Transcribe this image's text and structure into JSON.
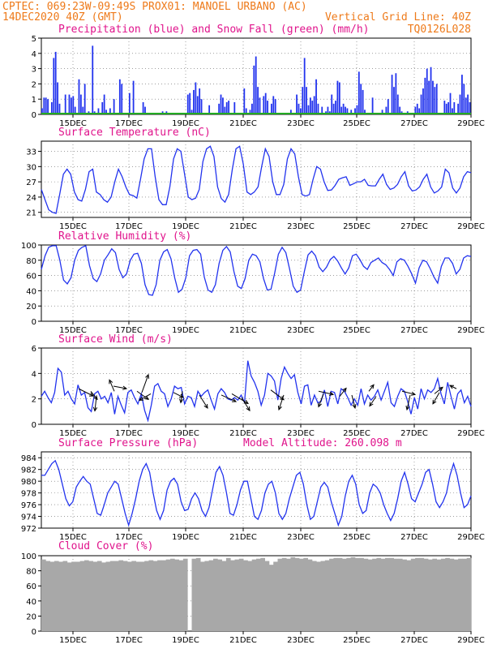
{
  "header": {
    "line1": "CPTEC:   069:23W-09:49S   PROX01: MANOEL URBANO (AC)",
    "line2_left": "14DEC2020 40Z (GMT)",
    "line2_right": "Vertical Grid Line: 40Z",
    "line3_right": "TQ0126L028"
  },
  "colors": {
    "header": "#ee7a1a",
    "title": "#e0148c",
    "precip": "#2233ee",
    "snow": "#22aa22",
    "line": "#2233ee",
    "wind_arrow": "#000000",
    "cloud": "#a8a8a8"
  },
  "x_ticks": [
    "15DEC",
    "17DEC",
    "19DEC",
    "21DEC",
    "23DEC",
    "25DEC",
    "27DEC",
    "29DEC"
  ],
  "chart_data": [
    {
      "id": "precip",
      "type": "bar",
      "title": "Precipitation (blue) and Snow Fall (green) (mm/h)",
      "ylim": [
        0,
        5
      ],
      "yticks": [
        "0",
        "1",
        "2",
        "3",
        "4",
        "5"
      ],
      "series": [
        {
          "name": "Precipitation",
          "values": [
            0.4,
            1.1,
            1.1,
            1.0,
            0,
            0.8,
            3.7,
            4.1,
            2.1,
            0.7,
            0,
            0,
            1.3,
            0,
            1.3,
            1.1,
            1.2,
            0.5,
            0,
            2.3,
            1.3,
            0.5,
            2.0,
            0,
            0.2,
            0,
            4.5,
            0.2,
            0,
            0.4,
            0.1,
            0.8,
            1.3,
            0.3,
            0,
            0.4,
            0,
            1.0,
            0,
            0,
            2.3,
            2.0,
            0,
            0,
            0,
            1.4,
            0,
            2.2,
            0,
            0,
            0,
            0,
            0.8,
            0.5,
            0,
            0,
            0,
            0,
            0,
            0,
            0,
            0,
            0.2,
            0,
            0.2,
            0,
            0,
            0,
            0,
            0,
            0,
            0,
            0,
            0,
            0,
            1.3,
            1.4,
            0.3,
            1.6,
            2.1,
            1.2,
            1.7,
            1.0,
            0,
            0,
            0,
            0.6,
            0,
            0,
            0,
            0,
            0.7,
            1.3,
            1.1,
            0.5,
            0.8,
            0.9,
            0,
            0,
            0.8,
            0,
            0,
            0,
            0,
            1.7,
            0.4,
            0,
            0.3,
            0.7,
            3.2,
            3.8,
            1.8,
            1.1,
            0,
            1.2,
            1.4,
            0.9,
            0,
            0.7,
            1.2,
            1.0,
            0,
            0,
            0,
            0,
            0,
            0,
            0,
            0.3,
            0,
            0,
            1.3,
            0.7,
            0.4,
            1.8,
            3.7,
            1.8,
            0.6,
            1.1,
            0.9,
            1.2,
            2.3,
            0.7,
            0,
            0.5,
            0,
            0.2,
            0.5,
            0.2,
            1.3,
            0.7,
            0.9,
            2.2,
            2.1,
            0.5,
            0.7,
            0.5,
            0.4,
            0,
            0.3,
            0,
            0.4,
            0.6,
            2.8,
            2.0,
            1.6,
            0.3,
            0,
            0,
            0,
            1.1,
            0,
            0,
            0,
            0,
            0.3,
            0,
            0.5,
            1.0,
            0,
            2.6,
            1.8,
            2.7,
            1.3,
            0.5,
            0.2,
            0,
            0,
            0.2,
            0,
            0,
            0,
            0.5,
            0.7,
            0.4,
            1.3,
            1.7,
            2.4,
            3.0,
            2.2,
            3.1,
            2.2,
            1.8,
            2.0,
            0,
            0,
            0,
            0.9,
            0.7,
            0.8,
            1.4,
            0.4,
            0.8,
            0,
            0.7,
            1.3,
            2.6,
            2.0,
            1.1,
            1.3,
            0.8
          ],
          "color": "#2233ee"
        },
        {
          "name": "Snow Fall",
          "values": [
            0
          ],
          "color": "#22aa22"
        }
      ]
    },
    {
      "id": "temp",
      "type": "line",
      "title": "Surface Temperature (nC)",
      "ylim": [
        20,
        35
      ],
      "yticks": [
        "21",
        "24",
        "27",
        "30",
        "33"
      ],
      "series": [
        {
          "name": "Surface Temperature",
          "values": [
            25.5,
            23.5,
            21.5,
            21,
            20.8,
            24.5,
            28.5,
            29.5,
            28.5,
            25,
            23.5,
            23.2,
            25.5,
            29,
            29.5,
            25,
            24.5,
            23.5,
            23,
            24,
            27,
            29.5,
            28,
            26,
            24.5,
            24.3,
            23.8,
            27.5,
            31.5,
            33.5,
            33.5,
            28,
            23.5,
            22.5,
            22.5,
            26,
            31.5,
            33.5,
            33,
            28.5,
            24,
            23.5,
            23.8,
            25.5,
            31,
            33.5,
            34,
            32,
            26,
            23.7,
            23,
            24.5,
            29.5,
            33.5,
            34,
            30.5,
            25,
            24.5,
            25,
            26,
            30,
            33.5,
            32,
            27,
            24.5,
            24.5,
            26.5,
            31.5,
            33.5,
            32.5,
            28,
            24.5,
            24.2,
            24.5,
            27.5,
            30,
            29.5,
            27,
            25.3,
            25.4,
            26.3,
            27.5,
            27.8,
            28,
            26.3,
            26.6,
            27,
            27,
            27.5,
            26.3,
            26.2,
            26.2,
            27.5,
            28.5,
            26.5,
            25.5,
            25.8,
            26.5,
            28,
            29,
            26.2,
            25.2,
            25.4,
            26,
            27.5,
            28.5,
            26,
            24.8,
            25.2,
            26,
            29.5,
            28.8,
            25.8,
            24.8,
            25.8,
            28,
            29,
            28.8
          ]
        }
      ]
    },
    {
      "id": "rh",
      "type": "line",
      "title": "Relative Humidity (%)",
      "ylim": [
        0,
        100
      ],
      "yticks": [
        "0",
        "20",
        "40",
        "60",
        "80",
        "100"
      ],
      "series": [
        {
          "name": "Relative Humidity",
          "values": [
            68,
            86,
            97,
            99,
            99,
            80,
            54,
            49,
            57,
            80,
            93,
            97,
            99,
            73,
            56,
            52,
            62,
            80,
            87,
            95,
            90,
            68,
            57,
            62,
            80,
            88,
            89,
            76,
            48,
            35,
            34,
            48,
            80,
            91,
            94,
            82,
            57,
            38,
            42,
            57,
            86,
            93,
            94,
            88,
            58,
            41,
            38,
            48,
            76,
            93,
            98,
            91,
            65,
            46,
            43,
            56,
            80,
            88,
            86,
            78,
            56,
            41,
            42,
            63,
            88,
            97,
            90,
            69,
            46,
            38,
            41,
            65,
            87,
            92,
            86,
            71,
            65,
            71,
            81,
            85,
            79,
            70,
            62,
            70,
            86,
            88,
            81,
            72,
            68,
            77,
            80,
            83,
            77,
            74,
            68,
            60,
            78,
            82,
            80,
            72,
            62,
            50,
            70,
            80,
            78,
            69,
            58,
            50,
            72,
            83,
            83,
            76,
            62,
            68,
            83,
            86,
            85
          ]
        }
      ]
    },
    {
      "id": "wind",
      "type": "line",
      "title": "Surface Wind (m/s)",
      "ylim": [
        0,
        6
      ],
      "yticks": [
        "0",
        "2",
        "4",
        "6"
      ],
      "series": [
        {
          "name": "Surface Wind",
          "values": [
            2.2,
            2.6,
            2.1,
            1.7,
            2.5,
            4.4,
            4.1,
            2.3,
            2.6,
            2.0,
            1.6,
            3.1,
            2.3,
            2.5,
            1.3,
            1.0,
            2.4,
            2.6,
            2.0,
            2.2,
            1.7,
            2.5,
            0.8,
            2.2,
            1.5,
            0.9,
            2.5,
            2.7,
            2.1,
            1.6,
            2.4,
            1.1,
            0.3,
            1.5,
            3.0,
            3.2,
            2.6,
            2.4,
            1.4,
            2.0,
            3.0,
            2.8,
            2.9,
            1.6,
            2.2,
            2.1,
            1.4,
            2.6,
            2.2,
            2.5,
            2.7,
            1.9,
            1.2,
            2.4,
            2.8,
            2.5,
            2.0,
            1.9,
            2.1,
            1.9,
            2.3,
            1.7,
            5.0,
            3.8,
            3.3,
            2.6,
            1.5,
            2.3,
            4.0,
            3.8,
            3.4,
            1.9,
            3.6,
            4.5,
            4.0,
            3.6,
            3.9,
            2.5,
            1.6,
            3.0,
            3.1,
            1.5,
            2.3,
            1.7,
            1.8,
            2.7,
            1.4,
            2.6,
            2.5,
            1.6,
            2.8,
            2.6,
            2.1,
            1.5,
            2.0,
            1.5,
            2.8,
            1.6,
            2.3,
            1.9,
            2.2,
            2.7,
            1.9,
            2.6,
            3.3,
            1.7,
            1.4,
            2.2,
            2.8,
            2.6,
            1.8,
            0.8,
            2.1,
            1.2,
            2.8,
            2.0,
            2.7,
            2.5,
            2.8,
            3.6,
            2.4,
            1.6,
            3.3,
            2.2,
            1.2,
            2.4,
            2.7,
            1.7,
            2.2,
            1.4
          ]
        }
      ]
    },
    {
      "id": "pres",
      "type": "line",
      "title": "Surface Pressure (hPa)",
      "annotation": "Model Altitude: 260.098 m",
      "ylim": [
        972,
        985
      ],
      "yticks": [
        "972",
        "974",
        "976",
        "978",
        "980",
        "982",
        "984"
      ],
      "series": [
        {
          "name": "Surface Pressure",
          "values": [
            981,
            981,
            982,
            983,
            983.5,
            982,
            979.5,
            977,
            975.8,
            976.5,
            979,
            980,
            980.8,
            980,
            979.5,
            977,
            974.5,
            974.2,
            976,
            978,
            979,
            980,
            979.5,
            977,
            974.5,
            972.5,
            974.5,
            977,
            980,
            982,
            983,
            981.5,
            978,
            975,
            973.5,
            975,
            978.5,
            980,
            980.5,
            979.5,
            976.5,
            975,
            975.2,
            977,
            978,
            977,
            975,
            974,
            975.5,
            978.5,
            981.5,
            982.5,
            981,
            978,
            974.5,
            974.2,
            976,
            978.5,
            980,
            980,
            977,
            974,
            973.5,
            975,
            978,
            979.5,
            980,
            978,
            974.5,
            973.5,
            974.5,
            977,
            979,
            981,
            981.5,
            979.5,
            976,
            973.5,
            974,
            976.5,
            979,
            979.8,
            979,
            976.5,
            974.5,
            972.5,
            974,
            977.5,
            980,
            981,
            979.5,
            976,
            974.5,
            975,
            978,
            979.5,
            979,
            978,
            976,
            974.5,
            973.3,
            974.5,
            977,
            980,
            981.5,
            979.5,
            977,
            976.5,
            978,
            979.5,
            981.5,
            982,
            979.5,
            976.5,
            975.5,
            976.5,
            978,
            981,
            983,
            981,
            978,
            975.5,
            976,
            977.5
          ]
        }
      ]
    },
    {
      "id": "cloud",
      "type": "bar",
      "title": "Cloud Cover (%)",
      "ylim": [
        0,
        100
      ],
      "yticks": [
        "0",
        "20",
        "40",
        "60",
        "80",
        "100"
      ],
      "series": [
        {
          "name": "Cloud Cover",
          "values": [
            95,
            93,
            92,
            93,
            92,
            93,
            91,
            92,
            92,
            93,
            94,
            93,
            92,
            93,
            91,
            92,
            93,
            93,
            94,
            93,
            92,
            93,
            92,
            92,
            93,
            94,
            93,
            94,
            94,
            95,
            96,
            95,
            94,
            96,
            0,
            96,
            97,
            92,
            93,
            94,
            96,
            95,
            93,
            97,
            94,
            95,
            96,
            94,
            93,
            95,
            96,
            97,
            93,
            88,
            92,
            96,
            97,
            96,
            98,
            97,
            96,
            97,
            95,
            93,
            92,
            93,
            94,
            96,
            97,
            97,
            96,
            97,
            98,
            97,
            97,
            96,
            95,
            96,
            97,
            96,
            97,
            97,
            96,
            96,
            95,
            94,
            96,
            97,
            97,
            96,
            95,
            96,
            95,
            96,
            97,
            96,
            95,
            96,
            96,
            97
          ]
        }
      ]
    }
  ]
}
